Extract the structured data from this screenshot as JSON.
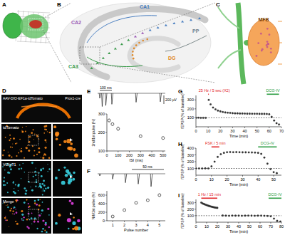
{
  "panel_labels": [
    "A",
    "B",
    "C",
    "D",
    "E",
    "F",
    "G",
    "H",
    "I"
  ],
  "panel_b": {
    "labels": [
      "CA1",
      "CA2",
      "CA3",
      "DG",
      "PP"
    ]
  },
  "panel_c": {
    "label": "MFB"
  },
  "panel_d": {
    "construct": "AAV-DIO-EF1a-tdTomato",
    "mouse_line": "Prox1-cre",
    "rows": [
      "tdTomato",
      "VGluT1",
      "Merge"
    ]
  },
  "panel_e_trace": {
    "time_scale": "100 ms",
    "amplitude_scale": "200 µV"
  },
  "panel_f_trace": {
    "time_scale": "50 ms"
  },
  "chart_data": [
    {
      "type": "scatter",
      "marker": "open-circle",
      "x_label": "ISI (ms)",
      "y_label": "2nd/1st pulse (%)",
      "x": [
        20,
        50,
        100,
        300,
        500
      ],
      "values": [
        265,
        245,
        220,
        180,
        170
      ],
      "errors": [
        10,
        9,
        12,
        8,
        9
      ],
      "xlim": [
        0,
        520
      ],
      "ylim": [
        100,
        300
      ],
      "xticks": [
        0,
        100,
        200,
        300,
        400,
        500
      ],
      "yticks": [
        100,
        200,
        300
      ]
    },
    {
      "type": "scatter",
      "marker": "open-circle",
      "x_label": "Pulse number",
      "y_label": "Nth/1st pulse (%)",
      "x": [
        1,
        2,
        3,
        4,
        5
      ],
      "values": [
        100,
        250,
        420,
        480,
        600
      ],
      "errors": [
        0,
        15,
        25,
        30,
        40
      ],
      "xlim": [
        0.5,
        5.5
      ],
      "ylim": [
        0,
        700
      ],
      "xticks": [
        1,
        2,
        3,
        4,
        5
      ],
      "yticks": [
        0,
        200,
        400,
        600
      ]
    },
    {
      "type": "scatter",
      "marker": "circle",
      "x_label": "Time (min)",
      "y_label": "fEPSP (% of baseline)",
      "baseline": 100,
      "x": [
        0,
        2,
        4,
        6,
        8,
        10.5,
        12,
        14,
        16,
        18,
        20,
        22,
        24,
        26,
        28,
        30,
        32,
        34,
        36,
        38,
        40,
        42,
        44,
        46,
        48,
        50,
        52,
        54,
        56,
        58,
        60,
        62,
        64,
        66,
        68
      ],
      "values": [
        100,
        101,
        99,
        100,
        100,
        300,
        250,
        215,
        195,
        180,
        172,
        165,
        160,
        157,
        155,
        152,
        150,
        150,
        148,
        148,
        147,
        146,
        146,
        145,
        145,
        145,
        144,
        144,
        144,
        143,
        140,
        110,
        70,
        40,
        25
      ],
      "annotations": [
        {
          "text": "25 Hz / 5 sec (X2)",
          "x": [
            10,
            10.5
          ],
          "color": "#e3262b"
        },
        {
          "text": "DCG-IV",
          "x": [
            58,
            68
          ],
          "color": "#2e9e44"
        }
      ],
      "xlim": [
        0,
        70
      ],
      "ylim": [
        0,
        350
      ],
      "xticks": [
        0,
        10,
        20,
        30,
        40,
        50,
        60,
        70
      ],
      "yticks": [
        100,
        200,
        300
      ]
    },
    {
      "type": "scatter",
      "marker": "circle",
      "x_label": "Time (min)",
      "y_label": "fEPSP (% of baseline)",
      "baseline": 100,
      "x": [
        0,
        2,
        4,
        6,
        8,
        10,
        12,
        14,
        16,
        18,
        20,
        22,
        24,
        26,
        28,
        30,
        32,
        34,
        36,
        38,
        40,
        42,
        44,
        46,
        48,
        50,
        52
      ],
      "values": [
        100,
        100,
        99,
        101,
        100,
        130,
        200,
        270,
        310,
        330,
        340,
        342,
        340,
        341,
        340,
        338,
        338,
        337,
        336,
        335,
        330,
        315,
        260,
        170,
        90,
        45,
        30
      ],
      "annotations": [
        {
          "text": "FSK / 5 min",
          "x": [
            10,
            15
          ],
          "color": "#e3262b"
        },
        {
          "text": "DCG-IV",
          "x": [
            40,
            52
          ],
          "color": "#2e9e44"
        }
      ],
      "xlim": [
        0,
        55
      ],
      "ylim": [
        0,
        400
      ],
      "xticks": [
        0,
        10,
        20,
        30,
        40,
        50
      ],
      "yticks": [
        100,
        200,
        300,
        400
      ]
    },
    {
      "type": "scatter",
      "marker": "circle",
      "x_label": "Time (min)",
      "y_label": "fEPSP (% of baseline)",
      "baseline": 100,
      "x": [
        5,
        6,
        7,
        8,
        9,
        10,
        11,
        12,
        13,
        14,
        15,
        16,
        17,
        18,
        19,
        20,
        25,
        28,
        31,
        34,
        37,
        40,
        43,
        46,
        49,
        52,
        55,
        58,
        61,
        64,
        67,
        70,
        73,
        76,
        79
      ],
      "values": [
        300,
        290,
        282,
        275,
        268,
        262,
        256,
        250,
        245,
        240,
        236,
        232,
        228,
        225,
        222,
        220,
        102,
        100,
        99,
        101,
        100,
        100,
        99,
        100,
        101,
        100,
        99,
        100,
        100,
        98,
        95,
        90,
        55,
        20,
        10
      ],
      "annotations": [
        {
          "text": "1 Hz / 15 min",
          "x": [
            5,
            20
          ],
          "color": "#e3262b"
        },
        {
          "text": "DCG-IV",
          "x": [
            68,
            80
          ],
          "color": "#2e9e44"
        }
      ],
      "xlim": [
        0,
        80
      ],
      "ylim": [
        0,
        350
      ],
      "xticks": [
        0,
        10,
        20,
        30,
        40,
        50,
        60,
        70,
        80
      ],
      "yticks": [
        100,
        200,
        300
      ]
    }
  ]
}
